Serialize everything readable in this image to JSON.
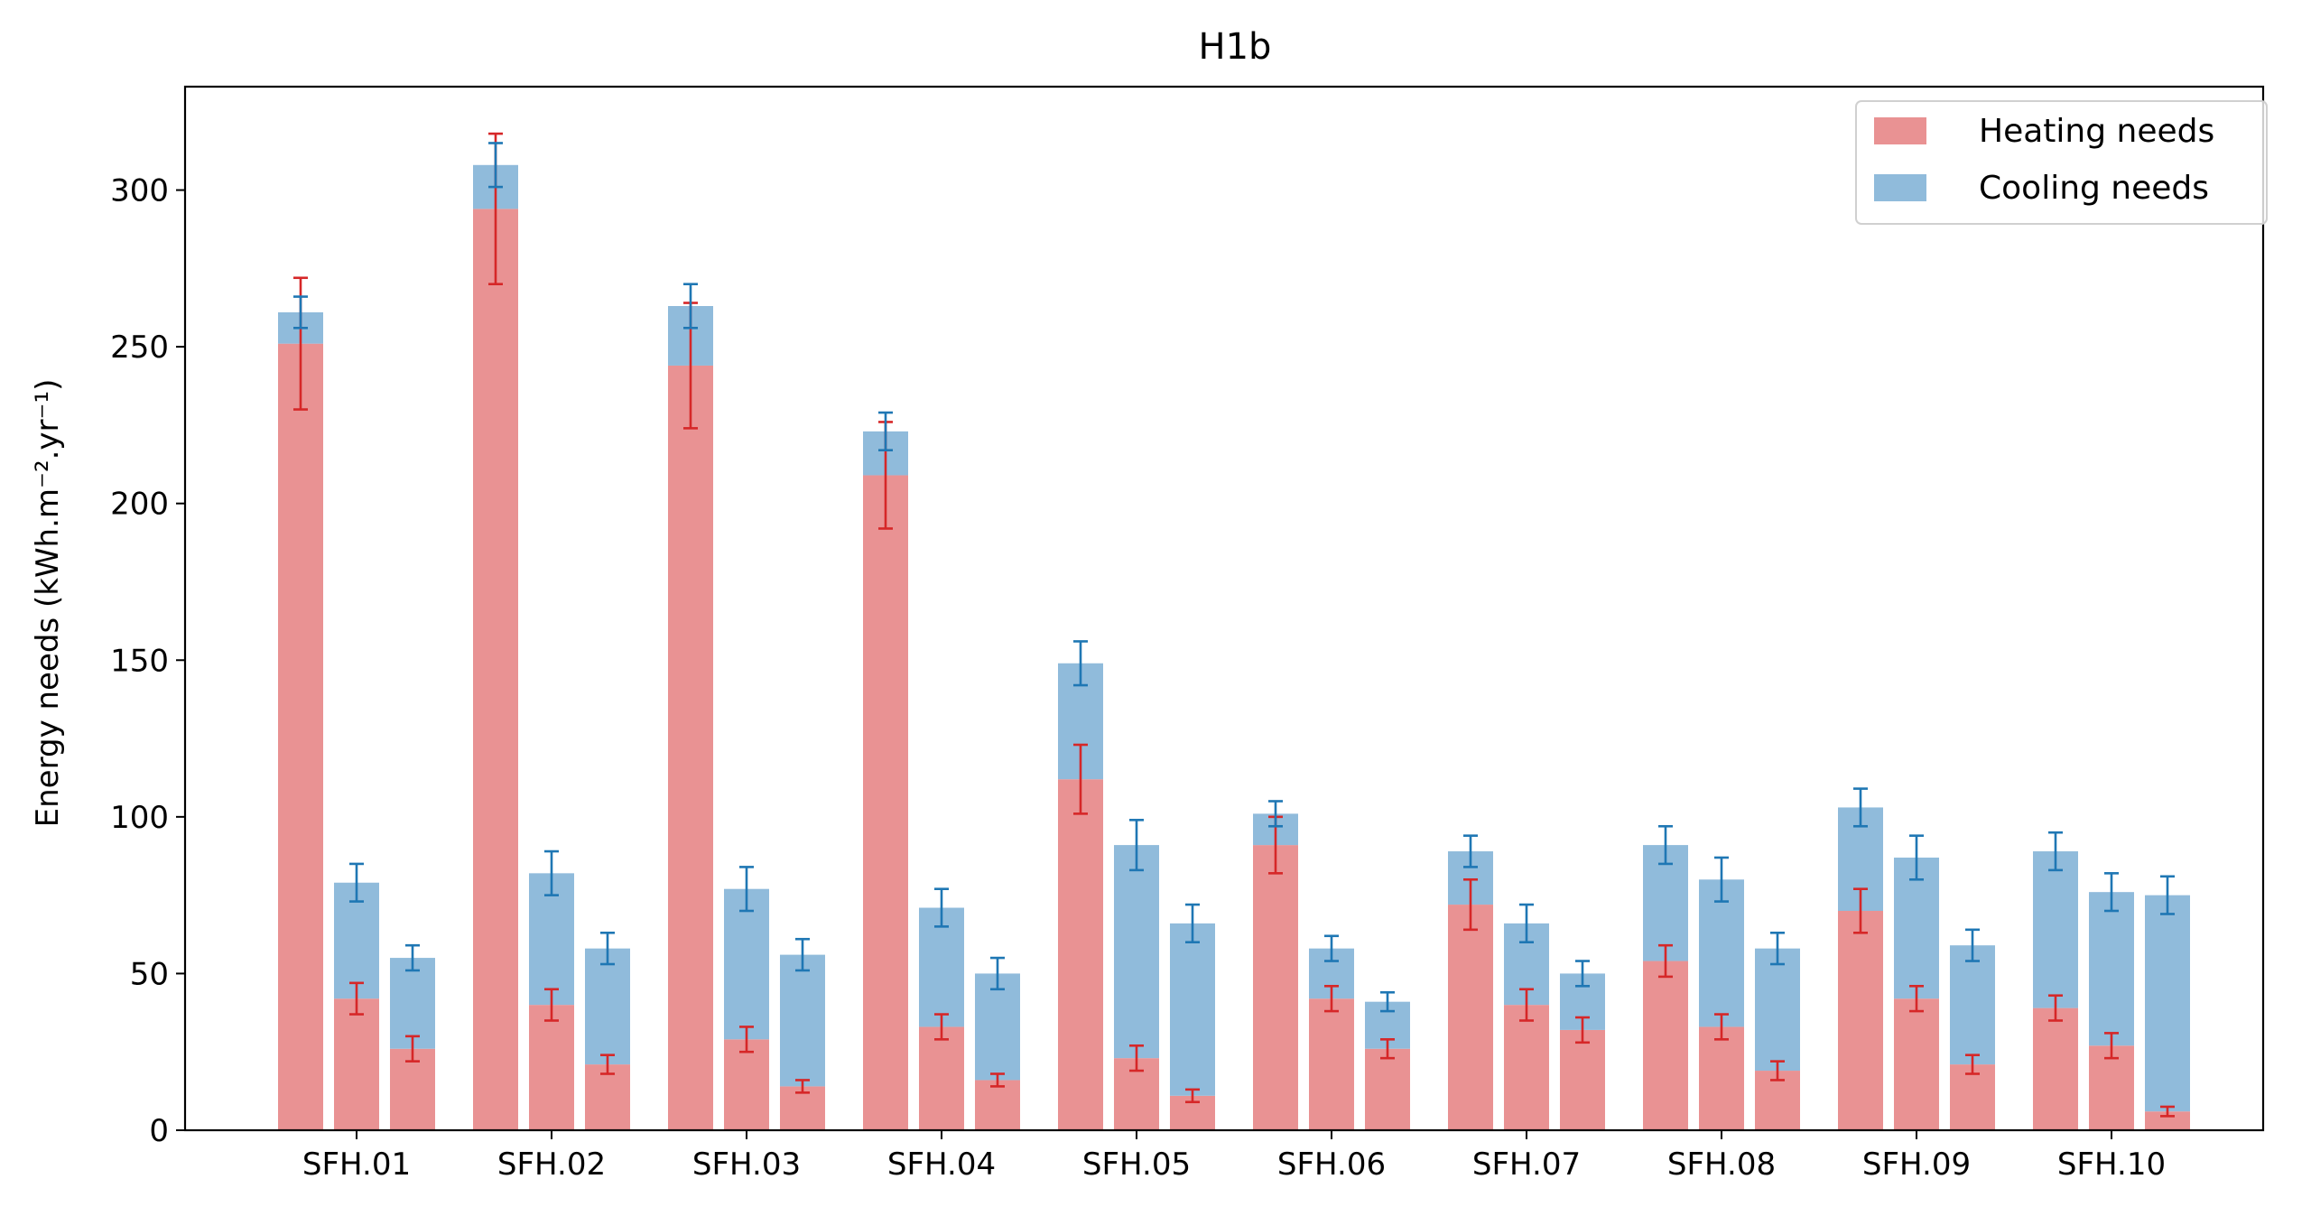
{
  "chart_data": {
    "type": "bar",
    "stacked": true,
    "title": "H1b",
    "ylabel": "Energy needs (kWh.m⁻².yr⁻¹)",
    "xlabel": "",
    "ylim": [
      0,
      333
    ],
    "yticks": [
      0,
      50,
      100,
      150,
      200,
      250,
      300
    ],
    "categories": [
      "SFH.01",
      "SFH.02",
      "SFH.03",
      "SFH.04",
      "SFH.05",
      "SFH.06",
      "SFH.07",
      "SFH.08",
      "SFH.09",
      "SFH.10"
    ],
    "bars_per_category": 3,
    "series": [
      {
        "name": "Heating needs",
        "color": "#e99293",
        "error_color": "#d62728",
        "values": [
          [
            251,
            42,
            26
          ],
          [
            294,
            40,
            21
          ],
          [
            244,
            29,
            14
          ],
          [
            209,
            33,
            16
          ],
          [
            112,
            23,
            11
          ],
          [
            91,
            42,
            26
          ],
          [
            72,
            40,
            32
          ],
          [
            54,
            33,
            19
          ],
          [
            70,
            42,
            21
          ],
          [
            39,
            27,
            6
          ]
        ],
        "errors": [
          [
            21,
            5,
            4
          ],
          [
            24,
            5,
            3
          ],
          [
            20,
            4,
            2
          ],
          [
            17,
            4,
            2
          ],
          [
            11,
            4,
            2
          ],
          [
            9,
            4,
            3
          ],
          [
            8,
            5,
            4
          ],
          [
            5,
            4,
            3
          ],
          [
            7,
            4,
            3
          ],
          [
            4,
            4,
            1.5
          ]
        ]
      },
      {
        "name": "Cooling needs",
        "color": "#90bbdb",
        "error_color": "#1f77b4",
        "values": [
          [
            10,
            37,
            29
          ],
          [
            14,
            42,
            37
          ],
          [
            19,
            48,
            42
          ],
          [
            14,
            38,
            34
          ],
          [
            37,
            68,
            55
          ],
          [
            10,
            16,
            15
          ],
          [
            17,
            26,
            18
          ],
          [
            37,
            47,
            39
          ],
          [
            33,
            45,
            38
          ],
          [
            50,
            49,
            69
          ]
        ],
        "errors": [
          [
            5,
            6,
            4
          ],
          [
            7,
            7,
            5
          ],
          [
            7,
            7,
            5
          ],
          [
            6,
            6,
            5
          ],
          [
            7,
            8,
            6
          ],
          [
            4,
            4,
            3
          ],
          [
            5,
            6,
            4
          ],
          [
            6,
            7,
            5
          ],
          [
            6,
            7,
            5
          ],
          [
            6,
            6,
            6
          ]
        ]
      }
    ],
    "legend_position": "top-right",
    "grid": false
  }
}
